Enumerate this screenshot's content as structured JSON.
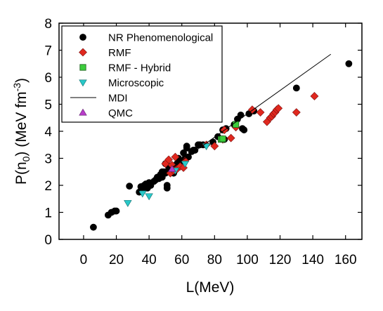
{
  "chart_data": {
    "type": "scatter",
    "xlabel": "L(MeV)",
    "ylabel_parts": [
      "P(n",
      "0",
      ") (MeV fm",
      "-3",
      ")"
    ],
    "xlim": [
      -15,
      170
    ],
    "ylim": [
      0,
      8
    ],
    "xticks": [
      0,
      20,
      40,
      60,
      80,
      100,
      120,
      140,
      160
    ],
    "yticks": [
      0,
      1,
      2,
      3,
      4,
      5,
      6,
      7,
      8
    ],
    "legend_position": "top-left",
    "series": [
      {
        "name": "NR Phenomenological",
        "marker": "circle",
        "color": "#000000",
        "points": [
          [
            6,
            0.45
          ],
          [
            15,
            0.9
          ],
          [
            17,
            1.0
          ],
          [
            19,
            1.05
          ],
          [
            20,
            1.05
          ],
          [
            28,
            1.97
          ],
          [
            34,
            1.75
          ],
          [
            35,
            1.95
          ],
          [
            36,
            1.8
          ],
          [
            37,
            2.0
          ],
          [
            38,
            2.05
          ],
          [
            39,
            1.9
          ],
          [
            40,
            2.1
          ],
          [
            41,
            2.0
          ],
          [
            43,
            2.15
          ],
          [
            44,
            2.2
          ],
          [
            45,
            2.3
          ],
          [
            46,
            2.25
          ],
          [
            47,
            2.4
          ],
          [
            48,
            2.3
          ],
          [
            49,
            2.5
          ],
          [
            50,
            2.45
          ],
          [
            51,
            1.9
          ],
          [
            51,
            2.0
          ],
          [
            52,
            2.6
          ],
          [
            53,
            2.7
          ],
          [
            54,
            2.55
          ],
          [
            55,
            2.45
          ],
          [
            56,
            2.6
          ],
          [
            57,
            2.8
          ],
          [
            58,
            2.7
          ],
          [
            60,
            2.9
          ],
          [
            61,
            3.2
          ],
          [
            62,
            3.0
          ],
          [
            63,
            3.45
          ],
          [
            63,
            3.38
          ],
          [
            64,
            3.05
          ],
          [
            66,
            3.25
          ],
          [
            67,
            3.3
          ],
          [
            68,
            3.3
          ],
          [
            70,
            3.5
          ],
          [
            71,
            3.5
          ],
          [
            73,
            3.5
          ],
          [
            79,
            3.6
          ],
          [
            82,
            3.8
          ],
          [
            85,
            4.05
          ],
          [
            86,
            3.7
          ],
          [
            87,
            4.1
          ],
          [
            92,
            4.25
          ],
          [
            94,
            4.45
          ],
          [
            96,
            4.6
          ],
          [
            97,
            4.1
          ],
          [
            98,
            4.05
          ],
          [
            101,
            4.65
          ],
          [
            104,
            4.75
          ],
          [
            130,
            5.6
          ],
          [
            162,
            6.5
          ],
          [
            50,
            2.8
          ],
          [
            48,
            2.5
          ],
          [
            58,
            3.0
          ]
        ]
      },
      {
        "name": "RMF",
        "marker": "diamond",
        "color": "#e0281e",
        "points": [
          [
            50,
            2.8
          ],
          [
            52,
            2.95
          ],
          [
            53,
            2.45
          ],
          [
            54,
            2.75
          ],
          [
            55,
            2.55
          ],
          [
            56,
            3.05
          ],
          [
            57,
            2.6
          ],
          [
            59,
            2.7
          ],
          [
            61,
            2.65
          ],
          [
            62,
            2.9
          ],
          [
            75,
            3.5
          ],
          [
            80,
            3.45
          ],
          [
            85,
            3.7
          ],
          [
            86,
            4.05
          ],
          [
            90,
            3.75
          ],
          [
            93,
            4.15
          ],
          [
            103,
            4.8
          ],
          [
            108,
            4.7
          ],
          [
            112,
            4.35
          ],
          [
            114,
            4.5
          ],
          [
            115,
            4.55
          ],
          [
            116,
            4.65
          ],
          [
            117,
            4.7
          ],
          [
            118,
            4.8
          ],
          [
            119,
            4.85
          ],
          [
            130,
            4.7
          ],
          [
            141,
            5.3
          ]
        ]
      },
      {
        "name": "RMF - Hybrid",
        "marker": "square",
        "color": "#3ccd3c",
        "points": [
          [
            84,
            3.7
          ],
          [
            85,
            3.72
          ],
          [
            93,
            4.25
          ]
        ]
      },
      {
        "name": "Microscopic",
        "marker": "triangle-down",
        "color": "#28c8c8",
        "points": [
          [
            27,
            1.35
          ],
          [
            36,
            1.7
          ],
          [
            40,
            1.6
          ],
          [
            56,
            2.55
          ],
          [
            62,
            2.8
          ],
          [
            75,
            3.45
          ]
        ]
      },
      {
        "name": "MDI",
        "marker": "line",
        "color": "#000000",
        "points": [
          [
            33,
            1.75
          ],
          [
            151,
            6.85
          ]
        ]
      },
      {
        "name": "QMC",
        "marker": "triangle-up",
        "color": "#b83cc8",
        "points": [
          [
            54,
            2.6
          ]
        ]
      }
    ]
  }
}
